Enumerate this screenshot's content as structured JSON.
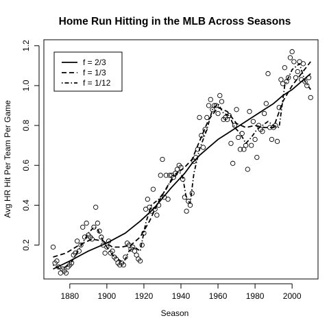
{
  "chart_data": {
    "type": "scatter",
    "title": "Home Run Hitting in the MLB Across Seasons",
    "xlabel": "Season",
    "ylabel": "Avg HR Hit Per Team Per Game",
    "xlim": [
      1866,
      2014
    ],
    "ylim": [
      0.03,
      1.23
    ],
    "xticks": [
      1880,
      1900,
      1920,
      1940,
      1960,
      1980,
      2000
    ],
    "yticks": [
      0.2,
      0.4,
      0.6,
      0.8,
      1.0,
      1.2
    ],
    "xtick_labels": [
      "1880",
      "1900",
      "1920",
      "1940",
      "1960",
      "1980",
      "2000"
    ],
    "ytick_labels": [
      "0.2",
      "0.4",
      "0.6",
      "0.8",
      "1.0",
      "1.2"
    ],
    "grid": false,
    "legend_position": "top-left",
    "points": [
      [
        1871,
        0.19
      ],
      [
        1872,
        0.11
      ],
      [
        1873,
        0.12
      ],
      [
        1874,
        0.09
      ],
      [
        1875,
        0.06
      ],
      [
        1876,
        0.08
      ],
      [
        1877,
        0.07
      ],
      [
        1878,
        0.06
      ],
      [
        1879,
        0.09
      ],
      [
        1880,
        0.1
      ],
      [
        1881,
        0.11
      ],
      [
        1882,
        0.15
      ],
      [
        1883,
        0.16
      ],
      [
        1884,
        0.22
      ],
      [
        1885,
        0.17
      ],
      [
        1886,
        0.2
      ],
      [
        1887,
        0.29
      ],
      [
        1888,
        0.24
      ],
      [
        1889,
        0.31
      ],
      [
        1890,
        0.25
      ],
      [
        1891,
        0.24
      ],
      [
        1892,
        0.23
      ],
      [
        1893,
        0.29
      ],
      [
        1894,
        0.39
      ],
      [
        1895,
        0.31
      ],
      [
        1896,
        0.27
      ],
      [
        1897,
        0.24
      ],
      [
        1898,
        0.2
      ],
      [
        1899,
        0.16
      ],
      [
        1900,
        0.19
      ],
      [
        1901,
        0.22
      ],
      [
        1902,
        0.16
      ],
      [
        1903,
        0.17
      ],
      [
        1904,
        0.14
      ],
      [
        1905,
        0.13
      ],
      [
        1906,
        0.11
      ],
      [
        1907,
        0.1
      ],
      [
        1908,
        0.11
      ],
      [
        1909,
        0.1
      ],
      [
        1910,
        0.14
      ],
      [
        1911,
        0.21
      ],
      [
        1912,
        0.2
      ],
      [
        1913,
        0.18
      ],
      [
        1914,
        0.19
      ],
      [
        1915,
        0.17
      ],
      [
        1916,
        0.15
      ],
      [
        1917,
        0.13
      ],
      [
        1918,
        0.12
      ],
      [
        1919,
        0.2
      ],
      [
        1920,
        0.26
      ],
      [
        1921,
        0.38
      ],
      [
        1922,
        0.43
      ],
      [
        1923,
        0.39
      ],
      [
        1924,
        0.37
      ],
      [
        1925,
        0.48
      ],
      [
        1926,
        0.38
      ],
      [
        1927,
        0.35
      ],
      [
        1928,
        0.4
      ],
      [
        1929,
        0.55
      ],
      [
        1930,
        0.63
      ],
      [
        1931,
        0.44
      ],
      [
        1932,
        0.55
      ],
      [
        1933,
        0.43
      ],
      [
        1934,
        0.55
      ],
      [
        1935,
        0.55
      ],
      [
        1936,
        0.54
      ],
      [
        1937,
        0.56
      ],
      [
        1938,
        0.58
      ],
      [
        1939,
        0.6
      ],
      [
        1940,
        0.59
      ],
      [
        1941,
        0.53
      ],
      [
        1942,
        0.44
      ],
      [
        1943,
        0.37
      ],
      [
        1944,
        0.42
      ],
      [
        1945,
        0.4
      ],
      [
        1946,
        0.46
      ],
      [
        1947,
        0.62
      ],
      [
        1948,
        0.64
      ],
      [
        1949,
        0.68
      ],
      [
        1950,
        0.84
      ],
      [
        1951,
        0.75
      ],
      [
        1952,
        0.69
      ],
      [
        1953,
        0.78
      ],
      [
        1954,
        0.84
      ],
      [
        1955,
        0.9
      ],
      [
        1956,
        0.93
      ],
      [
        1957,
        0.88
      ],
      [
        1958,
        0.9
      ],
      [
        1959,
        0.9
      ],
      [
        1960,
        0.86
      ],
      [
        1961,
        0.95
      ],
      [
        1962,
        0.92
      ],
      [
        1963,
        0.83
      ],
      [
        1964,
        0.84
      ],
      [
        1965,
        0.83
      ],
      [
        1966,
        0.85
      ],
      [
        1967,
        0.71
      ],
      [
        1968,
        0.61
      ],
      [
        1969,
        0.8
      ],
      [
        1970,
        0.88
      ],
      [
        1971,
        0.74
      ],
      [
        1972,
        0.68
      ],
      [
        1973,
        0.76
      ],
      [
        1974,
        0.68
      ],
      [
        1975,
        0.7
      ],
      [
        1976,
        0.58
      ],
      [
        1977,
        0.87
      ],
      [
        1978,
        0.7
      ],
      [
        1979,
        0.82
      ],
      [
        1980,
        0.73
      ],
      [
        1981,
        0.64
      ],
      [
        1982,
        0.8
      ],
      [
        1983,
        0.78
      ],
      [
        1984,
        0.77
      ],
      [
        1985,
        0.86
      ],
      [
        1986,
        0.91
      ],
      [
        1987,
        1.06
      ],
      [
        1988,
        0.79
      ],
      [
        1989,
        0.73
      ],
      [
        1990,
        0.79
      ],
      [
        1991,
        0.8
      ],
      [
        1992,
        0.72
      ],
      [
        1993,
        0.89
      ],
      [
        1994,
        1.03
      ],
      [
        1995,
        1.01
      ],
      [
        1996,
        1.09
      ],
      [
        1997,
        1.02
      ],
      [
        1998,
        1.04
      ],
      [
        1999,
        1.14
      ],
      [
        2000,
        1.17
      ],
      [
        2001,
        1.12
      ],
      [
        2002,
        1.04
      ],
      [
        2003,
        1.07
      ],
      [
        2004,
        1.12
      ],
      [
        2005,
        1.03
      ],
      [
        2006,
        1.11
      ],
      [
        2007,
        1.02
      ],
      [
        2008,
        1.0
      ],
      [
        2009,
        1.04
      ],
      [
        2010,
        0.94
      ]
    ],
    "series": [
      {
        "name": "f = 2/3",
        "style": "solid",
        "x": [
          1871,
          1880,
          1890,
          1900,
          1910,
          1918,
          1925,
          1935,
          1942,
          1946,
          1950,
          1955,
          1960,
          1965,
          1970,
          1975,
          1980,
          1985,
          1990,
          1995,
          2000,
          2005,
          2010
        ],
        "y": [
          0.08,
          0.12,
          0.17,
          0.21,
          0.26,
          0.32,
          0.38,
          0.49,
          0.56,
          0.61,
          0.65,
          0.69,
          0.73,
          0.76,
          0.79,
          0.82,
          0.85,
          0.88,
          0.91,
          0.95,
          0.98,
          1.02,
          1.06
        ]
      },
      {
        "name": "f = 1/3",
        "style": "dashed",
        "x": [
          1871,
          1878,
          1885,
          1892,
          1898,
          1903,
          1908,
          1913,
          1918,
          1923,
          1928,
          1933,
          1938,
          1942,
          1946,
          1950,
          1955,
          1960,
          1965,
          1970,
          1975,
          1980,
          1985,
          1990,
          1995,
          2000,
          2005,
          2010
        ],
        "y": [
          0.14,
          0.16,
          0.2,
          0.23,
          0.22,
          0.19,
          0.19,
          0.2,
          0.24,
          0.32,
          0.42,
          0.5,
          0.56,
          0.59,
          0.63,
          0.72,
          0.83,
          0.89,
          0.87,
          0.81,
          0.79,
          0.8,
          0.79,
          0.79,
          0.92,
          1.0,
          1.06,
          1.12
        ]
      },
      {
        "name": "f = 1/12",
        "style": "dotdash",
        "x": [
          1871,
          1875,
          1880,
          1885,
          1890,
          1893,
          1895,
          1898,
          1900,
          1903,
          1906,
          1909,
          1912,
          1915,
          1918,
          1921,
          1924,
          1928,
          1932,
          1936,
          1939,
          1941,
          1943,
          1945,
          1947,
          1950,
          1954,
          1957,
          1960,
          1963,
          1966,
          1969,
          1972,
          1975,
          1978,
          1981,
          1984,
          1987,
          1990,
          1993,
          1996,
          2000,
          2004,
          2007,
          2010
        ],
        "y": [
          0.1,
          0.08,
          0.1,
          0.18,
          0.26,
          0.29,
          0.28,
          0.22,
          0.19,
          0.15,
          0.13,
          0.11,
          0.17,
          0.19,
          0.17,
          0.31,
          0.4,
          0.43,
          0.48,
          0.55,
          0.57,
          0.54,
          0.43,
          0.41,
          0.56,
          0.68,
          0.78,
          0.88,
          0.91,
          0.86,
          0.85,
          0.79,
          0.76,
          0.71,
          0.74,
          0.78,
          0.8,
          0.82,
          0.8,
          0.79,
          1.0,
          1.08,
          1.11,
          1.02,
          0.98
        ]
      }
    ]
  }
}
